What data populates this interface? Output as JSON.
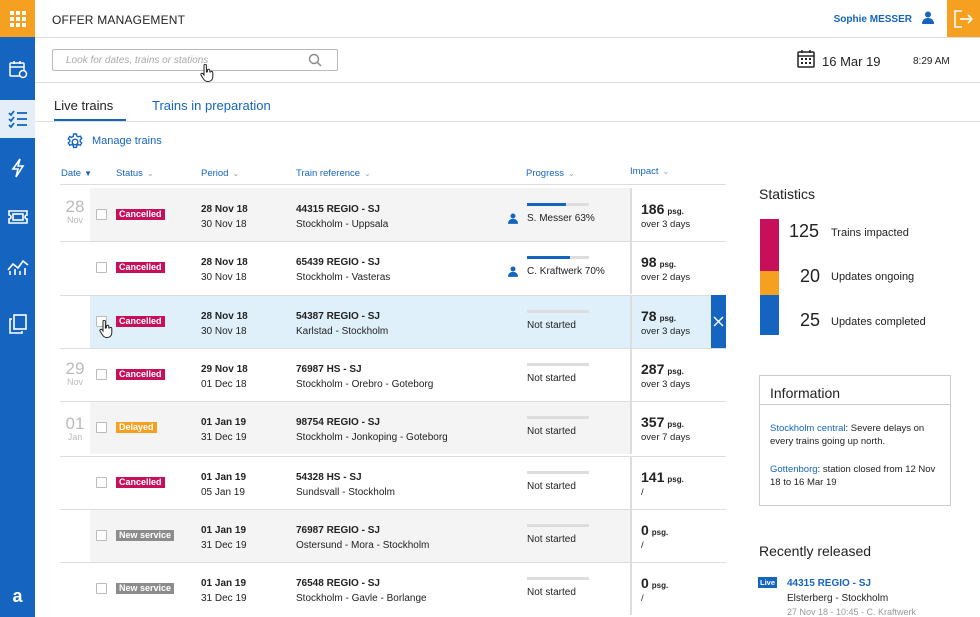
{
  "header": {
    "app_title": "OFFER MANAGEMENT",
    "user_name": "Sophie MESSER"
  },
  "search": {
    "placeholder": "Look for dates, trains or stations"
  },
  "datetime": {
    "date": "16 Mar 19",
    "time": "8:29 AM"
  },
  "tabs": [
    {
      "label": "Live trains"
    },
    {
      "label": "Trains in preparation"
    }
  ],
  "manage_label": "Manage trains",
  "columns": {
    "date": "Date",
    "status": "Status",
    "period": "Period",
    "train": "Train reference",
    "progress": "Progress",
    "impact": "Impact"
  },
  "date_groups": [
    {
      "day": "28",
      "month": "Nov"
    },
    {
      "day": "29",
      "month": "Nov"
    },
    {
      "day": "01",
      "month": "Jan"
    }
  ],
  "rows": [
    {
      "status": "Cancelled",
      "status_color": "#c8105a",
      "start": "28 Nov 18",
      "end": "30 Nov 18",
      "train": "44315 REGIO - SJ",
      "route": "Stockholm - Uppsala",
      "progress_text": "S. Messer 63%",
      "progress": 0.63,
      "assigned": true,
      "impact": "186",
      "impact_unit": "psg.",
      "impact_sub": "over 3 days"
    },
    {
      "status": "Cancelled",
      "status_color": "#c8105a",
      "start": "28 Nov 18",
      "end": "30 Nov 18",
      "train": "65439 REGIO - SJ",
      "route": "Stockholm - Vasteras",
      "progress_text": "C. Kraftwerk 70%",
      "progress": 0.7,
      "assigned": true,
      "impact": "98",
      "impact_unit": "psg.",
      "impact_sub": "over 2 days"
    },
    {
      "status": "Cancelled",
      "status_color": "#c8105a",
      "start": "28 Nov 18",
      "end": "30 Nov 18",
      "train": "54387 REGIO - SJ",
      "route": "Karlstad - Stockholm",
      "progress_text": "Not started",
      "progress": 0,
      "assigned": false,
      "impact": "78",
      "impact_unit": "psg.",
      "impact_sub": "over 3 days"
    },
    {
      "status": "Cancelled",
      "status_color": "#c8105a",
      "start": "29 Nov 18",
      "end": "01 Dec 18",
      "train": "76987 HS - SJ",
      "route": "Stockholm - Orebro - Goteborg",
      "progress_text": "Not started",
      "progress": 0,
      "assigned": false,
      "impact": "287",
      "impact_unit": "psg.",
      "impact_sub": "over 3 days"
    },
    {
      "status": "Delayed",
      "status_color": "#f5a021",
      "start": "01 Jan 19",
      "end": "31 Dec 19",
      "train": "98754 REGIO - SJ",
      "route": "Stockholm - Jonkoping - Goteborg",
      "progress_text": "Not started",
      "progress": 0,
      "assigned": false,
      "impact": "357",
      "impact_unit": "psg.",
      "impact_sub": "over 7 days"
    },
    {
      "status": "Cancelled",
      "status_color": "#c8105a",
      "start": "01 Jan 19",
      "end": "05 Jan 19",
      "train": "54328 HS - SJ",
      "route": "Sundsvall - Stockholm",
      "progress_text": "Not started",
      "progress": 0,
      "assigned": false,
      "impact": "141",
      "impact_unit": "psg.",
      "impact_sub": "/"
    },
    {
      "status": "New service",
      "status_color": "#8c8c8c",
      "start": "01 Jan 19",
      "end": "31 Dec 19",
      "train": "76987 REGIO - SJ",
      "route": "Ostersund - Mora - Stockholm",
      "progress_text": "Not started",
      "progress": 0,
      "assigned": false,
      "impact": "0",
      "impact_unit": "psg.",
      "impact_sub": "/"
    },
    {
      "status": "New service",
      "status_color": "#8c8c8c",
      "start": "01 Jan 19",
      "end": "31 Dec 19",
      "train": "76548 REGIO - SJ",
      "route": "Stockholm - Gavle - Borlange",
      "progress_text": "Not started",
      "progress": 0,
      "assigned": false,
      "impact": "0",
      "impact_unit": "psg.",
      "impact_sub": "/"
    }
  ],
  "statistics": {
    "title": "Statistics",
    "items": [
      {
        "value": "125",
        "label": "Trains impacted",
        "color": "#c8105a"
      },
      {
        "value": "20",
        "label": "Updates ongoing",
        "color": "#f5a021"
      },
      {
        "value": "25",
        "label": "Updates completed",
        "color": "#1565c0"
      }
    ]
  },
  "information": {
    "title": "Information",
    "items": [
      {
        "link": "Stockholm central",
        "text": ": Severe delays on every trains going up north."
      },
      {
        "link": "Gottenborg",
        "text": ": station closed from 12 Nov 18 to 16 Mar 19"
      }
    ]
  },
  "recently_released": {
    "title": "Recently released",
    "badge": "Live",
    "train": "44315 REGIO - SJ",
    "route": "Elsterberg - Stockholm",
    "meta": "27 Nov 18 - 10:45 - C. Kraftwerk"
  },
  "sidebar_bottom_label": "a"
}
